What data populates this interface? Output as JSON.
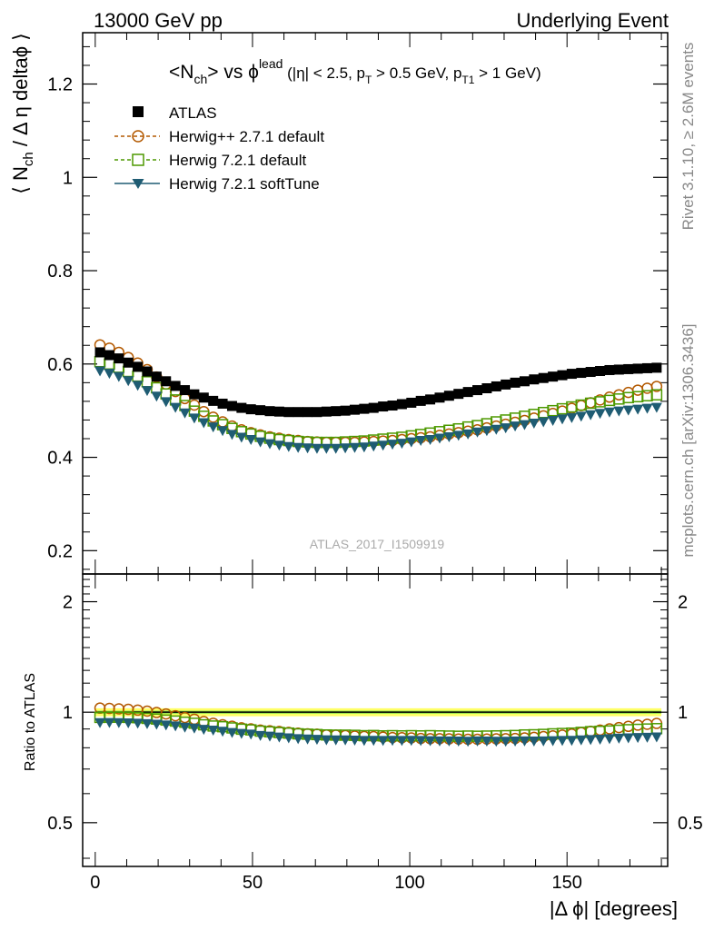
{
  "header": {
    "left": "13000 GeV pp",
    "right": "Underlying Event"
  },
  "side_labels": {
    "rivet": "Rivet 3.1.10, ≥ 2.6M events",
    "mcplots": "mcplots.cern.ch [arXiv:1306.3436]"
  },
  "colors": {
    "atlas": "#000000",
    "herwigpp": "#b35900",
    "herwig721": "#4d9900",
    "softtune": "#1f5c73",
    "band_outer": "#ffff66",
    "band_inner": "#99e64d"
  },
  "chart_data": [
    {
      "type": "scatter",
      "panel": "main",
      "title_parts": {
        "a": "<N",
        "a_sub": "ch",
        "b": "> vs ϕ",
        "b_sup": "lead",
        "c": " (|η| < 2.5, p",
        "c_sub": "T",
        "d": " > 0.5 GeV, p",
        "d_sub": "T1",
        "e": " > 1 GeV)"
      },
      "ylabel_parts": {
        "a": "⟨ N",
        "a_sub": "ch",
        "b": " / Δ η deltaϕ ⟩"
      },
      "watermark": "ATLAS_2017_I1509919",
      "xlim": [
        -4,
        182
      ],
      "ylim": [
        0.15,
        1.31
      ],
      "yticks": [
        0.2,
        0.4,
        0.6,
        0.8,
        1.0,
        1.2
      ],
      "yticklabels": [
        "0.2",
        "0.4",
        "0.6",
        "0.8",
        "1",
        "1.2"
      ],
      "legend_position": "top-left",
      "x": [
        1.5,
        4.5,
        7.5,
        10.5,
        13.5,
        16.5,
        19.5,
        22.5,
        25.5,
        28.5,
        31.5,
        34.5,
        37.5,
        40.5,
        43.5,
        46.5,
        49.5,
        52.5,
        55.5,
        58.5,
        61.5,
        64.5,
        67.5,
        70.5,
        73.5,
        76.5,
        79.5,
        82.5,
        85.5,
        88.5,
        91.5,
        94.5,
        97.5,
        100.5,
        103.5,
        106.5,
        109.5,
        112.5,
        115.5,
        118.5,
        121.5,
        124.5,
        127.5,
        130.5,
        133.5,
        136.5,
        139.5,
        142.5,
        145.5,
        148.5,
        151.5,
        154.5,
        157.5,
        160.5,
        163.5,
        166.5,
        169.5,
        172.5,
        175.5,
        178.5
      ],
      "series": [
        {
          "name": "ATLAS",
          "marker": "square",
          "values": [
            0.625,
            0.619,
            0.612,
            0.603,
            0.594,
            0.584,
            0.573,
            0.563,
            0.553,
            0.544,
            0.535,
            0.528,
            0.521,
            0.515,
            0.51,
            0.506,
            0.503,
            0.501,
            0.499,
            0.498,
            0.497,
            0.497,
            0.497,
            0.497,
            0.498,
            0.499,
            0.5,
            0.502,
            0.504,
            0.506,
            0.509,
            0.511,
            0.514,
            0.517,
            0.521,
            0.524,
            0.528,
            0.532,
            0.536,
            0.54,
            0.544,
            0.548,
            0.552,
            0.556,
            0.56,
            0.563,
            0.567,
            0.57,
            0.573,
            0.576,
            0.579,
            0.581,
            0.583,
            0.585,
            0.587,
            0.588,
            0.589,
            0.59,
            0.591,
            0.592
          ]
        },
        {
          "name": "Herwig++ 2.7.1 default",
          "marker": "circle-open",
          "values": [
            0.641,
            0.634,
            0.625,
            0.614,
            0.602,
            0.588,
            0.572,
            0.557,
            0.541,
            0.526,
            0.512,
            0.498,
            0.486,
            0.476,
            0.467,
            0.459,
            0.453,
            0.448,
            0.444,
            0.441,
            0.438,
            0.436,
            0.434,
            0.433,
            0.432,
            0.432,
            0.432,
            0.432,
            0.433,
            0.434,
            0.435,
            0.436,
            0.438,
            0.44,
            0.442,
            0.444,
            0.447,
            0.45,
            0.453,
            0.456,
            0.459,
            0.463,
            0.467,
            0.471,
            0.475,
            0.479,
            0.484,
            0.489,
            0.494,
            0.499,
            0.505,
            0.511,
            0.517,
            0.523,
            0.529,
            0.534,
            0.539,
            0.544,
            0.548,
            0.552
          ]
        },
        {
          "name": "Herwig 7.2.1 default",
          "marker": "square-open",
          "values": [
            0.605,
            0.6,
            0.593,
            0.584,
            0.574,
            0.562,
            0.549,
            0.536,
            0.523,
            0.511,
            0.499,
            0.488,
            0.478,
            0.47,
            0.462,
            0.455,
            0.45,
            0.445,
            0.441,
            0.438,
            0.436,
            0.434,
            0.433,
            0.432,
            0.432,
            0.432,
            0.433,
            0.434,
            0.435,
            0.437,
            0.439,
            0.441,
            0.443,
            0.446,
            0.449,
            0.452,
            0.455,
            0.458,
            0.461,
            0.465,
            0.468,
            0.472,
            0.476,
            0.48,
            0.484,
            0.488,
            0.492,
            0.496,
            0.5,
            0.504,
            0.508,
            0.512,
            0.516,
            0.519,
            0.522,
            0.525,
            0.528,
            0.53,
            0.532,
            0.534
          ]
        },
        {
          "name": "Herwig 7.2.1 softTune",
          "marker": "triangle-down",
          "values": [
            0.585,
            0.58,
            0.573,
            0.564,
            0.554,
            0.543,
            0.531,
            0.519,
            0.507,
            0.495,
            0.484,
            0.474,
            0.465,
            0.457,
            0.449,
            0.443,
            0.438,
            0.433,
            0.429,
            0.426,
            0.423,
            0.421,
            0.42,
            0.419,
            0.419,
            0.419,
            0.42,
            0.421,
            0.422,
            0.424,
            0.426,
            0.428,
            0.43,
            0.433,
            0.436,
            0.438,
            0.441,
            0.444,
            0.447,
            0.45,
            0.454,
            0.457,
            0.46,
            0.463,
            0.467,
            0.47,
            0.473,
            0.476,
            0.479,
            0.482,
            0.485,
            0.488,
            0.491,
            0.494,
            0.497,
            0.499,
            0.501,
            0.503,
            0.505,
            0.507
          ]
        }
      ]
    },
    {
      "type": "scatter",
      "panel": "ratio",
      "ylabel": "Ratio to ATLAS",
      "xlabel": "|Δ ϕ| [degrees]",
      "xlim": [
        -4,
        182
      ],
      "ylim": [
        0.38,
        2.38
      ],
      "xticks": [
        0,
        50,
        100,
        150
      ],
      "xticklabels": [
        "0",
        "50",
        "100",
        "150"
      ],
      "yticks": [
        0.5,
        1,
        2
      ],
      "yticklabels": [
        "0.5",
        "1",
        "2"
      ],
      "band": {
        "outer": [
          0.975,
          1.025
        ],
        "inner": [
          0.99,
          1.01
        ]
      },
      "series": [
        {
          "name": "Herwig++ 2.7.1 default",
          "marker": "circle-open",
          "values": [
            1.026,
            1.024,
            1.021,
            1.018,
            1.013,
            1.007,
            0.998,
            0.989,
            0.978,
            0.967,
            0.957,
            0.943,
            0.933,
            0.924,
            0.916,
            0.907,
            0.901,
            0.894,
            0.89,
            0.886,
            0.881,
            0.877,
            0.873,
            0.871,
            0.867,
            0.866,
            0.864,
            0.861,
            0.859,
            0.858,
            0.855,
            0.853,
            0.852,
            0.851,
            0.848,
            0.847,
            0.847,
            0.846,
            0.845,
            0.844,
            0.844,
            0.845,
            0.846,
            0.847,
            0.848,
            0.851,
            0.854,
            0.858,
            0.862,
            0.866,
            0.872,
            0.88,
            0.887,
            0.894,
            0.901,
            0.908,
            0.915,
            0.922,
            0.927,
            0.932
          ]
        },
        {
          "name": "Herwig 7.2.1 default",
          "marker": "square-open",
          "values": [
            0.968,
            0.969,
            0.969,
            0.968,
            0.966,
            0.962,
            0.958,
            0.952,
            0.946,
            0.939,
            0.933,
            0.924,
            0.917,
            0.913,
            0.906,
            0.899,
            0.895,
            0.888,
            0.884,
            0.88,
            0.877,
            0.873,
            0.871,
            0.869,
            0.867,
            0.866,
            0.866,
            0.865,
            0.863,
            0.864,
            0.862,
            0.863,
            0.862,
            0.863,
            0.862,
            0.863,
            0.862,
            0.861,
            0.86,
            0.861,
            0.86,
            0.861,
            0.862,
            0.863,
            0.864,
            0.867,
            0.868,
            0.87,
            0.873,
            0.875,
            0.877,
            0.881,
            0.885,
            0.887,
            0.889,
            0.893,
            0.896,
            0.898,
            0.9,
            0.902
          ]
        },
        {
          "name": "Herwig 7.2.1 softTune",
          "marker": "triangle-down",
          "values": [
            0.936,
            0.937,
            0.936,
            0.935,
            0.933,
            0.93,
            0.927,
            0.922,
            0.917,
            0.91,
            0.905,
            0.898,
            0.893,
            0.887,
            0.88,
            0.875,
            0.871,
            0.864,
            0.86,
            0.855,
            0.851,
            0.847,
            0.845,
            0.843,
            0.841,
            0.84,
            0.84,
            0.839,
            0.837,
            0.838,
            0.837,
            0.838,
            0.837,
            0.838,
            0.837,
            0.836,
            0.835,
            0.835,
            0.834,
            0.833,
            0.835,
            0.834,
            0.833,
            0.833,
            0.834,
            0.835,
            0.834,
            0.835,
            0.836,
            0.837,
            0.838,
            0.84,
            0.842,
            0.844,
            0.847,
            0.849,
            0.851,
            0.853,
            0.854,
            0.856
          ]
        }
      ]
    }
  ]
}
